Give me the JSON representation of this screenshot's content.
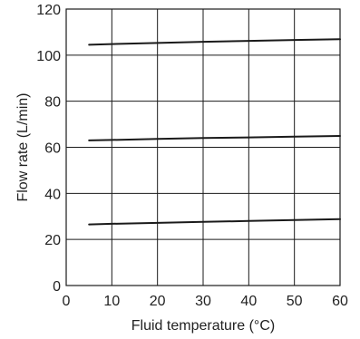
{
  "chart_data": {
    "type": "line",
    "title": "",
    "xlabel": "Fluid temperature (°C)",
    "ylabel": "Flow rate (L/min)",
    "xlim": [
      0,
      60
    ],
    "ylim": [
      0,
      120
    ],
    "xticks": [
      0,
      10,
      20,
      30,
      40,
      50,
      60
    ],
    "yticks": [
      0,
      20,
      40,
      60,
      80,
      100,
      120
    ],
    "grid": true,
    "legend": "none",
    "series": [
      {
        "x": [
          5,
          10,
          20,
          30,
          40,
          50,
          60
        ],
        "y": [
          104.5,
          104.8,
          105.3,
          105.8,
          106.2,
          106.6,
          106.9
        ]
      },
      {
        "x": [
          5,
          10,
          20,
          30,
          40,
          50,
          60
        ],
        "y": [
          63.0,
          63.2,
          63.6,
          64.0,
          64.3,
          64.6,
          64.9
        ]
      },
      {
        "x": [
          5,
          10,
          20,
          30,
          40,
          50,
          60
        ],
        "y": [
          26.5,
          26.8,
          27.2,
          27.6,
          28.0,
          28.4,
          28.8
        ]
      }
    ],
    "colors": {
      "line": "#1a1a1a",
      "grid": "#1a1a1a",
      "axis": "#1a1a1a"
    }
  }
}
